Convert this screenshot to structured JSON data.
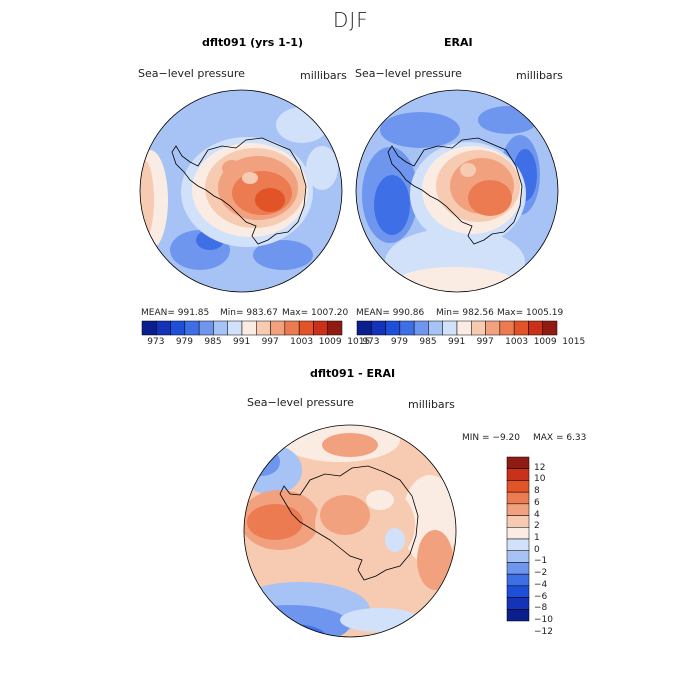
{
  "header": {
    "title": "DJF"
  },
  "colors": {
    "scale": [
      "#0a1f8c",
      "#1433b8",
      "#1e4fd8",
      "#3f6fe6",
      "#6e96ee",
      "#a7c2f5",
      "#d2e1fa",
      "#fbece3",
      "#f7cab2",
      "#f2a17f",
      "#ec7b52",
      "#e25327",
      "#c9311a",
      "#8f1b12"
    ],
    "land_line": "#000000"
  },
  "chart_data": [
    {
      "type": "heatmap",
      "title": "dflt091 (yrs 1-1)",
      "label_left": "Sea−level pressure",
      "label_right": "millibars",
      "stats": {
        "mean": "MEAN=  991.85",
        "min": "Min=  983.67",
        "max": "Max=  1007.20"
      },
      "colorbar_ticks": [
        "973",
        "979",
        "985",
        "991",
        "997",
        "1003",
        "1009",
        "1015"
      ]
    },
    {
      "type": "heatmap",
      "title": "ERAI",
      "label_left": "Sea−level pressure",
      "label_right": "millibars",
      "stats": {
        "mean": "MEAN=  990.86",
        "min": "Min=  982.56",
        "max": "Max=  1005.19"
      },
      "colorbar_ticks": [
        "973",
        "979",
        "985",
        "991",
        "997",
        "1003",
        "1009",
        "1015"
      ]
    },
    {
      "type": "heatmap",
      "title": "dflt091 - ERAI",
      "label_left": "Sea−level pressure",
      "label_right": "millibars",
      "stats": {
        "min": "MIN =   −9.20",
        "max": "MAX =    6.33"
      },
      "colorbar_ticks": [
        "12",
        "10",
        "8",
        "6",
        "4",
        "2",
        "1",
        "0",
        "−1",
        "−2",
        "−4",
        "−6",
        "−8",
        "−10",
        "−12"
      ]
    }
  ]
}
